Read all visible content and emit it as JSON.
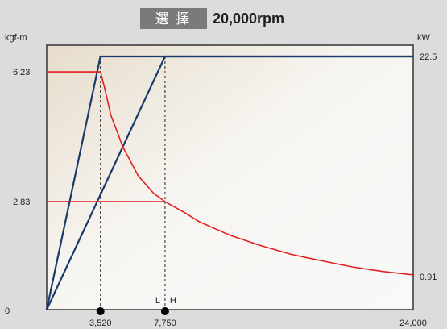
{
  "header": {
    "badge_label": "選 擇",
    "speed_label": "20,000rpm"
  },
  "colors": {
    "background": "#dcdcdc",
    "badge_bg": "#7a7a7a",
    "torque_line": "#e02020",
    "power_line": "#1a3a6b",
    "plot_frame": "#333333",
    "plot_fill_light": "#f6f4f0",
    "plot_fill_dark": "#e8e0d2"
  },
  "chart_data": {
    "type": "line",
    "x_axis": {
      "range": [
        0,
        24000
      ],
      "tick_labels": [
        {
          "value": 3520,
          "label": "3,520"
        },
        {
          "value": 7750,
          "label": "7,750"
        },
        {
          "value": 24000,
          "label": "24,000"
        }
      ],
      "markers": [
        {
          "value": 3520
        },
        {
          "value": 7750,
          "left_text": "L",
          "right_text": "H"
        }
      ]
    },
    "y_left": {
      "unit_label": "kgf-m",
      "range": [
        0,
        6.93
      ],
      "tick_labels": [
        {
          "value": 0,
          "label": "0"
        },
        {
          "value": 2.83,
          "label": "2.83"
        },
        {
          "value": 6.23,
          "label": "6.23"
        }
      ]
    },
    "y_right": {
      "unit_label": "kW",
      "range": [
        0,
        22.5
      ],
      "tick_labels": [
        {
          "value": 22.5,
          "label": "22.5"
        }
      ]
    },
    "end_value_label": "0.91",
    "series": [
      {
        "kind": "power",
        "axis": "right",
        "points": [
          [
            0,
            0
          ],
          [
            3520,
            22.5
          ],
          [
            24000,
            22.5
          ]
        ]
      },
      {
        "kind": "power",
        "axis": "right",
        "points": [
          [
            0,
            0
          ],
          [
            7750,
            22.5
          ],
          [
            24000,
            22.5
          ]
        ]
      },
      {
        "kind": "torque",
        "axis": "left",
        "points": [
          [
            0,
            6.23
          ],
          [
            3520,
            6.23
          ],
          [
            3800,
            5.8
          ],
          [
            4200,
            5.1
          ],
          [
            5000,
            4.25
          ],
          [
            6000,
            3.5
          ],
          [
            7000,
            3.05
          ],
          [
            7750,
            2.83
          ],
          [
            9000,
            2.55
          ],
          [
            10000,
            2.3
          ],
          [
            12000,
            1.95
          ],
          [
            14000,
            1.68
          ],
          [
            16000,
            1.45
          ],
          [
            18000,
            1.28
          ],
          [
            20000,
            1.12
          ],
          [
            22000,
            1.0
          ],
          [
            24000,
            0.91
          ]
        ]
      },
      {
        "kind": "torque",
        "axis": "left",
        "points": [
          [
            0,
            2.83
          ],
          [
            7750,
            2.83
          ]
        ]
      }
    ]
  }
}
